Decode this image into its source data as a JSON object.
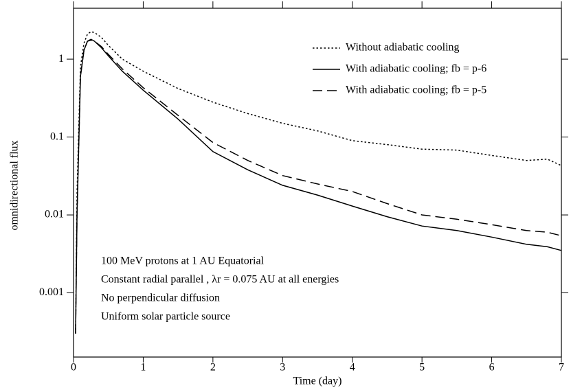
{
  "chart_data": {
    "type": "line",
    "xlabel": "Time (day)",
    "ylabel": "omnidirectional flux",
    "xlim": [
      0,
      7
    ],
    "xticks": [
      0,
      1,
      2,
      3,
      4,
      5,
      6,
      7
    ],
    "ylim": [
      0.00015,
      4.5
    ],
    "yticks": [
      0.001,
      0.01,
      0.1,
      1
    ],
    "yscale": "log",
    "legend": "upper right",
    "annotations": [
      "100 MeV protons at 1 AU Equatorial",
      "Constant radial parallel , λr = 0.075 AU at all energies",
      "No perpendicular diffusion",
      "Uniform solar particle source"
    ],
    "x": [
      0.03,
      0.05,
      0.1,
      0.15,
      0.2,
      0.25,
      0.3,
      0.4,
      0.5,
      0.7,
      1,
      1.5,
      2,
      2.5,
      3,
      3.5,
      4,
      4.5,
      5,
      5.5,
      6,
      6.5,
      6.8,
      7
    ],
    "series": [
      {
        "name": "Without adiabatic cooling",
        "color": "#000000",
        "linestyle": "dotted",
        "values": [
          0.0003,
          0.02,
          0.8,
          1.6,
          2.1,
          2.25,
          2.2,
          1.9,
          1.5,
          1.0,
          0.7,
          0.42,
          0.28,
          0.2,
          0.15,
          0.12,
          0.09,
          0.08,
          0.07,
          0.068,
          0.058,
          0.05,
          0.052,
          0.043
        ]
      },
      {
        "name": "With adiabatic cooling; fb = p-6",
        "color": "#000000",
        "linestyle": "solid",
        "values": [
          0.0003,
          0.01,
          0.6,
          1.3,
          1.7,
          1.8,
          1.7,
          1.4,
          1.1,
          0.7,
          0.4,
          0.17,
          0.065,
          0.038,
          0.024,
          0.018,
          0.013,
          0.0095,
          0.0072,
          0.0063,
          0.0052,
          0.0042,
          0.0039,
          0.0035
        ]
      },
      {
        "name": "With adiabatic cooling; fb = p-5",
        "color": "#000000",
        "linestyle": "dashed",
        "values": [
          0.0003,
          0.01,
          0.6,
          1.3,
          1.7,
          1.75,
          1.7,
          1.45,
          1.15,
          0.75,
          0.43,
          0.19,
          0.085,
          0.05,
          0.032,
          0.025,
          0.02,
          0.014,
          0.01,
          0.0088,
          0.0075,
          0.0063,
          0.006,
          0.0054
        ]
      }
    ]
  }
}
